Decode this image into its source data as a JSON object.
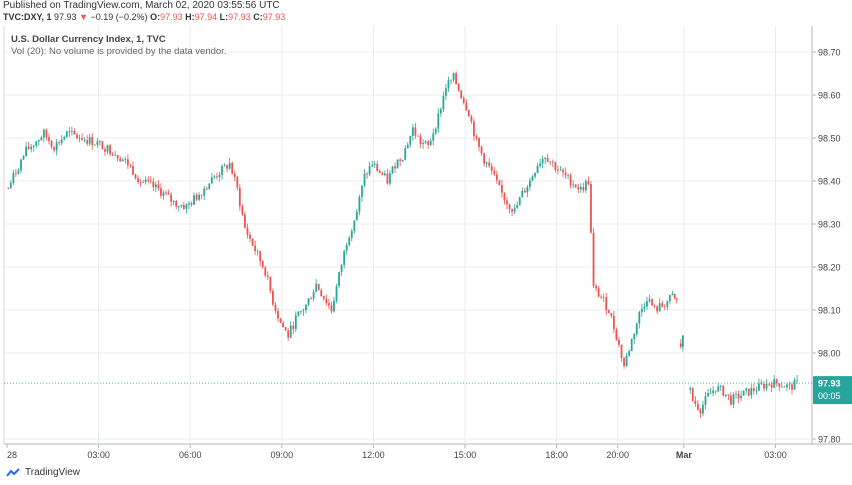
{
  "header": {
    "published": "Published on TradingView.com, March 02, 2020 03:55:56 UTC",
    "symbol": "TVC:DXY, 1",
    "last": "97.93",
    "change_arrow": "▼",
    "change": "−0.19 (−0.2%)",
    "o_label": "O:",
    "o_value": "97.93",
    "h_label": "H:",
    "h_value": "97.94",
    "l_label": "L:",
    "l_value": "97.93",
    "c_label": "C:",
    "c_value": "97.93"
  },
  "legend": {
    "title": "U.S. Dollar Currency Index, 1, TVC",
    "volume_note": "Vol (20): No volume is provided by the data vendor."
  },
  "price_badge": {
    "price": "97.93",
    "countdown": "00:05"
  },
  "footer": {
    "brand": "TradingView"
  },
  "colors": {
    "up": "#26a69a",
    "down": "#ef5350",
    "grid": "#e9ecef",
    "badge": "#26a69a",
    "price_line": "#26a69a"
  },
  "chart_data": {
    "type": "candlestick",
    "title": "U.S. Dollar Currency Index, 1, TVC",
    "ylim": [
      97.79,
      98.74
    ],
    "y_ticks": [
      98.7,
      98.6,
      98.5,
      98.4,
      98.3,
      98.2,
      98.1,
      98.0,
      97.8
    ],
    "y_tick_labels": [
      "98.70",
      "98.60",
      "98.50",
      "98.40",
      "98.30",
      "98.20",
      "98.10",
      "98.00",
      "97.80"
    ],
    "x_ticks": [
      {
        "label": "28",
        "t": 0
      },
      {
        "label": "03:00",
        "t": 180
      },
      {
        "label": "06:00",
        "t": 360
      },
      {
        "label": "09:00",
        "t": 540
      },
      {
        "label": "12:00",
        "t": 720
      },
      {
        "label": "15:00",
        "t": 900
      },
      {
        "label": "18:00",
        "t": 1080
      },
      {
        "label": "20:00",
        "t": 1200
      },
      {
        "label": "Mar",
        "t": 1330
      },
      {
        "label": "03:00",
        "t": 1510
      }
    ],
    "x_range": [
      0,
      1570
    ],
    "current_price": 97.93,
    "path": [
      [
        0,
        98.37
      ],
      [
        15,
        98.41
      ],
      [
        40,
        98.47
      ],
      [
        75,
        98.51
      ],
      [
        95,
        98.48
      ],
      [
        120,
        98.51
      ],
      [
        150,
        98.5
      ],
      [
        175,
        98.49
      ],
      [
        210,
        98.47
      ],
      [
        240,
        98.44
      ],
      [
        265,
        98.4
      ],
      [
        300,
        98.38
      ],
      [
        330,
        98.35
      ],
      [
        355,
        98.34
      ],
      [
        380,
        98.37
      ],
      [
        410,
        98.41
      ],
      [
        440,
        98.44
      ],
      [
        455,
        98.38
      ],
      [
        470,
        98.29
      ],
      [
        490,
        98.24
      ],
      [
        510,
        98.19
      ],
      [
        525,
        98.12
      ],
      [
        540,
        98.07
      ],
      [
        555,
        98.04
      ],
      [
        570,
        98.08
      ],
      [
        590,
        98.11
      ],
      [
        610,
        98.16
      ],
      [
        625,
        98.13
      ],
      [
        640,
        98.1
      ],
      [
        655,
        98.18
      ],
      [
        670,
        98.26
      ],
      [
        690,
        98.33
      ],
      [
        705,
        98.41
      ],
      [
        720,
        98.44
      ],
      [
        735,
        98.42
      ],
      [
        750,
        98.4
      ],
      [
        765,
        98.44
      ],
      [
        780,
        98.46
      ],
      [
        800,
        98.52
      ],
      [
        815,
        98.49
      ],
      [
        830,
        98.48
      ],
      [
        850,
        98.55
      ],
      [
        865,
        98.62
      ],
      [
        880,
        98.64
      ],
      [
        895,
        98.6
      ],
      [
        910,
        98.56
      ],
      [
        925,
        98.49
      ],
      [
        940,
        98.45
      ],
      [
        955,
        98.42
      ],
      [
        970,
        98.38
      ],
      [
        985,
        98.35
      ],
      [
        1000,
        98.33
      ],
      [
        1015,
        98.37
      ],
      [
        1030,
        98.4
      ],
      [
        1045,
        98.44
      ],
      [
        1060,
        98.46
      ],
      [
        1075,
        98.44
      ],
      [
        1090,
        98.42
      ],
      [
        1110,
        98.4
      ],
      [
        1130,
        98.38
      ],
      [
        1145,
        98.4
      ],
      [
        1155,
        98.15
      ],
      [
        1170,
        98.13
      ],
      [
        1185,
        98.1
      ],
      [
        1200,
        98.04
      ],
      [
        1215,
        97.97
      ],
      [
        1230,
        98.03
      ],
      [
        1245,
        98.09
      ],
      [
        1260,
        98.13
      ],
      [
        1275,
        98.1
      ],
      [
        1290,
        98.11
      ],
      [
        1300,
        98.12
      ],
      [
        1310,
        98.13
      ],
      [
        1318,
        98.12
      ],
      null,
      [
        1322,
        97.98
      ],
      [
        1330,
        98.05
      ],
      null,
      [
        1340,
        97.93
      ],
      [
        1350,
        97.89
      ],
      [
        1365,
        97.87
      ],
      [
        1380,
        97.9
      ],
      [
        1395,
        97.92
      ],
      [
        1410,
        97.91
      ],
      [
        1425,
        97.89
      ],
      [
        1440,
        97.9
      ],
      [
        1460,
        97.91
      ],
      [
        1480,
        97.92
      ],
      [
        1500,
        97.93
      ],
      [
        1520,
        97.93
      ],
      [
        1540,
        97.92
      ],
      [
        1555,
        97.93
      ]
    ]
  }
}
